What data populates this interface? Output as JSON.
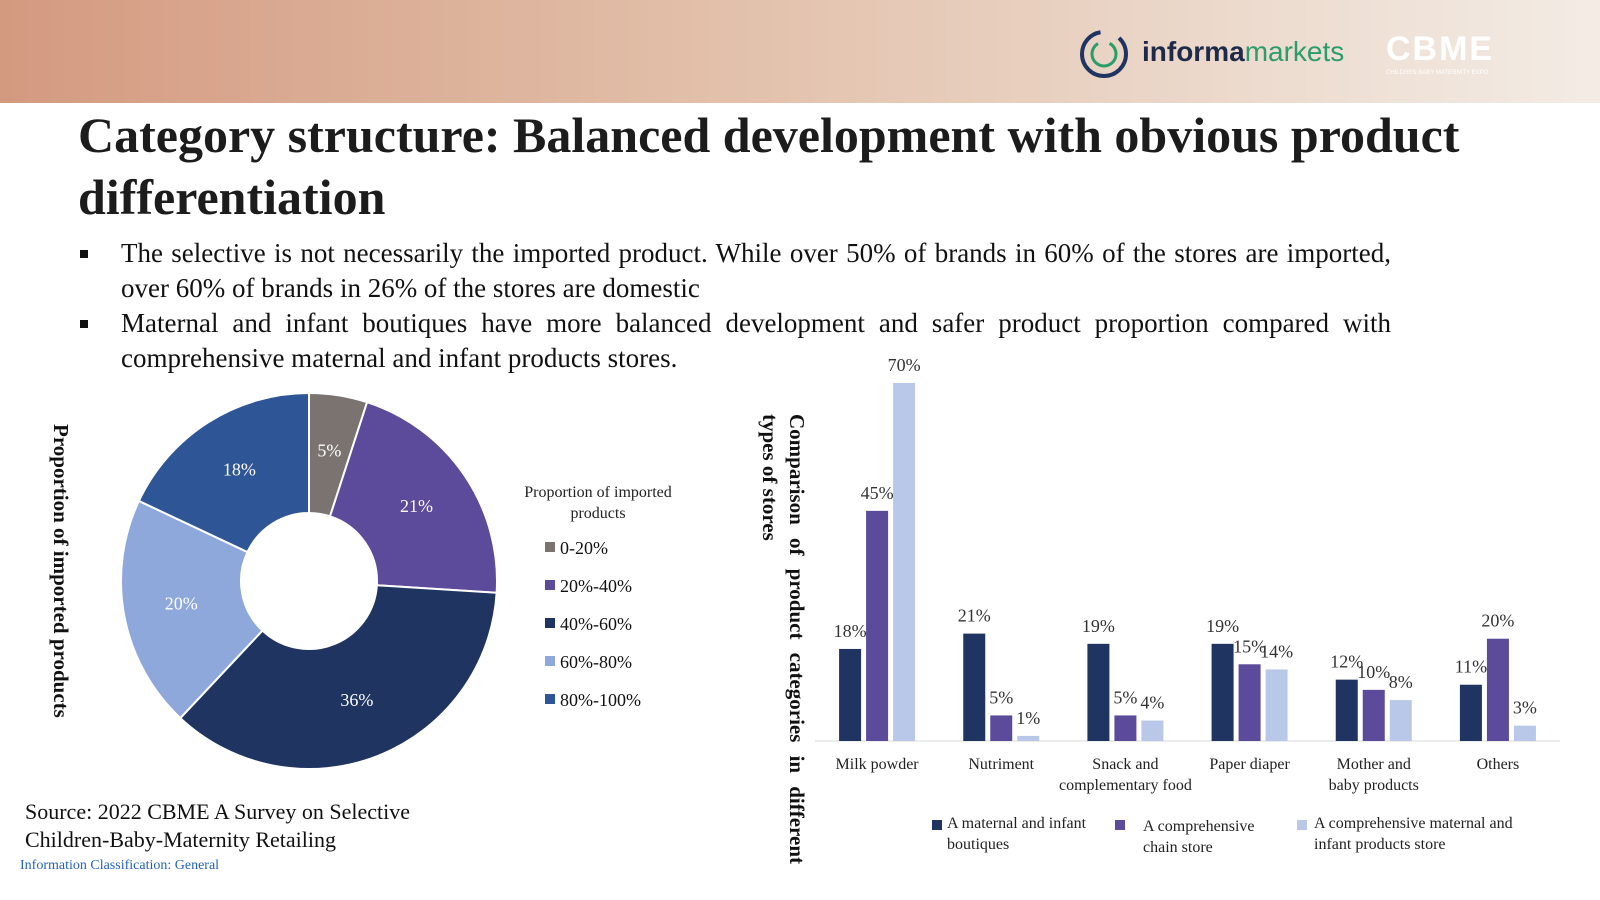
{
  "header": {
    "logo_informa": "informa",
    "logo_markets": "markets",
    "logo_cbme": "CBME",
    "logo_cbme_tagline": "CHILDREN BABY MATERNITY EXPO"
  },
  "title": "Category structure: Balanced development with obvious product differentiation",
  "bullets": [
    "The selective is not necessarily the imported product. While over 50% of brands in 60% of the stores are imported, over 60% of brands in 26% of the stores are domestic",
    "Maternal and infant boutiques have more balanced development and safer product proportion compared with comprehensive maternal and infant products stores."
  ],
  "chart_data": [
    {
      "type": "donut",
      "title": "Proportion of imported products",
      "legend_title": "Proportion of imported products",
      "categories": [
        "0-20%",
        "20%-40%",
        "40%-60%",
        "60%-80%",
        "80%-100%"
      ],
      "values": [
        5,
        21,
        36,
        20,
        18
      ],
      "value_labels": [
        "5%",
        "21%",
        "36%",
        "20%",
        "18%"
      ],
      "colors": [
        "#7a7370",
        "#5b4b9a",
        "#1f3461",
        "#8fa8dc",
        "#2e5596"
      ],
      "legend": "right"
    },
    {
      "type": "bar",
      "title": "Comparison of product categories in different types of stores",
      "categories": [
        "Milk powder",
        "Nutriment",
        "Snack and complementary food",
        "Paper diaper",
        "Mother and baby products",
        "Others"
      ],
      "ylim": [
        0,
        70
      ],
      "legend": "bottom",
      "series": [
        {
          "name": "A maternal and infant boutiques",
          "color": "#1f3461",
          "values": [
            18,
            21,
            19,
            19,
            12,
            11
          ],
          "value_labels": [
            "18%",
            "21%",
            "19%",
            "19%",
            "12%",
            "11%"
          ]
        },
        {
          "name": "A comprehensive chain store",
          "color": "#5b4b9a",
          "values": [
            45,
            5,
            5,
            15,
            10,
            20
          ],
          "value_labels": [
            "45%",
            "5%",
            "5%",
            "15%",
            "10%",
            "20%"
          ]
        },
        {
          "name": "A comprehensive maternal and infant products store",
          "color": "#b9c8e8",
          "values": [
            70,
            1,
            4,
            14,
            8,
            3
          ],
          "value_labels": [
            "70%",
            "1%",
            "4%",
            "14%",
            "8%",
            "3%"
          ]
        }
      ]
    }
  ],
  "source": "Source: 2022 CBME A Survey on Selective Children-Baby-Maternity Retailing",
  "classification": "Information Classification: General"
}
